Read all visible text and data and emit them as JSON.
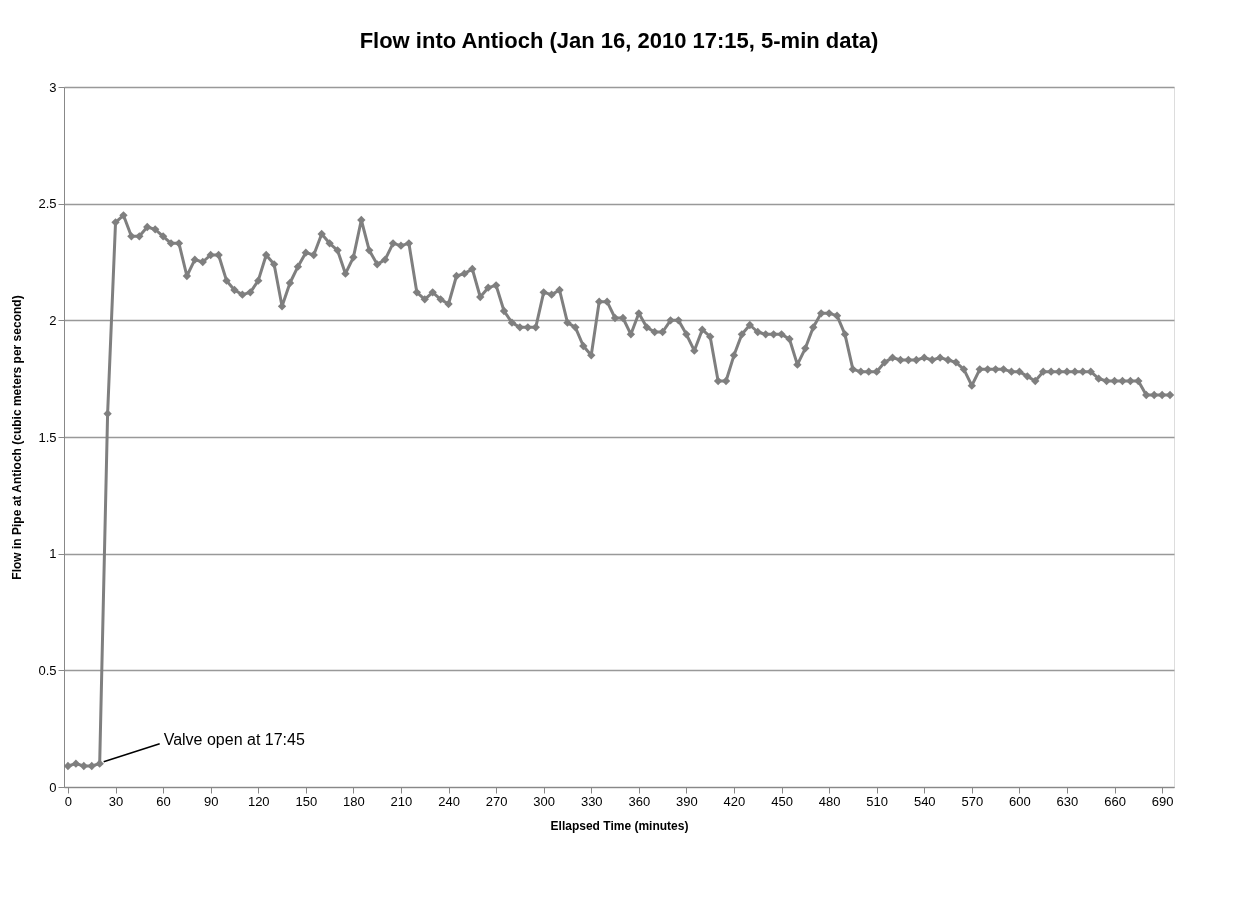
{
  "chart_data": {
    "type": "line",
    "title": "Flow into Antioch (Jan 16, 2010 17:15, 5-min data)",
    "xlabel": "Ellapsed Time (minutes)",
    "ylabel": "Flow in Pipe at Antioch (cubic meters per second)",
    "x": [
      0,
      5,
      10,
      15,
      20,
      25,
      30,
      35,
      40,
      45,
      50,
      55,
      60,
      65,
      70,
      75,
      80,
      85,
      90,
      95,
      100,
      105,
      110,
      115,
      120,
      125,
      130,
      135,
      140,
      145,
      150,
      155,
      160,
      165,
      170,
      175,
      180,
      185,
      190,
      195,
      200,
      205,
      210,
      215,
      220,
      225,
      230,
      235,
      240,
      245,
      250,
      255,
      260,
      265,
      270,
      275,
      280,
      285,
      290,
      295,
      300,
      305,
      310,
      315,
      320,
      325,
      330,
      335,
      340,
      345,
      350,
      355,
      360,
      365,
      370,
      375,
      380,
      385,
      390,
      395,
      400,
      405,
      410,
      415,
      420,
      425,
      430,
      435,
      440,
      445,
      450,
      455,
      460,
      465,
      470,
      475,
      480,
      485,
      490,
      495,
      500,
      505,
      510,
      515,
      520,
      525,
      530,
      535,
      540,
      545,
      550,
      555,
      560,
      565,
      570,
      575,
      580,
      585,
      590,
      595,
      600,
      605,
      610,
      615,
      620,
      625,
      630,
      635,
      640,
      645,
      650,
      655,
      660,
      665,
      670,
      675,
      680,
      685,
      690,
      695
    ],
    "series": [
      {
        "color": "#7f7f7f",
        "values": [
          0.09,
          0.1,
          0.09,
          0.09,
          0.1,
          1.6,
          2.42,
          2.45,
          2.36,
          2.36,
          2.4,
          2.39,
          2.36,
          2.33,
          2.33,
          2.19,
          2.26,
          2.25,
          2.28,
          2.28,
          2.17,
          2.13,
          2.11,
          2.12,
          2.17,
          2.28,
          2.24,
          2.06,
          2.16,
          2.23,
          2.29,
          2.28,
          2.37,
          2.33,
          2.3,
          2.2,
          2.27,
          2.43,
          2.3,
          2.24,
          2.26,
          2.33,
          2.32,
          2.33,
          2.12,
          2.09,
          2.12,
          2.09,
          2.07,
          2.19,
          2.2,
          2.22,
          2.1,
          2.14,
          2.15,
          2.04,
          1.99,
          1.97,
          1.97,
          1.97,
          2.12,
          2.11,
          2.13,
          1.99,
          1.97,
          1.89,
          1.85,
          2.08,
          2.08,
          2.01,
          2.01,
          1.94,
          2.03,
          1.97,
          1.95,
          1.95,
          2.0,
          2.0,
          1.94,
          1.87,
          1.96,
          1.93,
          1.74,
          1.74,
          1.85,
          1.94,
          1.98,
          1.95,
          1.94,
          1.94,
          1.94,
          1.92,
          1.81,
          1.88,
          1.97,
          2.03,
          2.03,
          2.02,
          1.94,
          1.79,
          1.78,
          1.78,
          1.78,
          1.82,
          1.84,
          1.83,
          1.83,
          1.83,
          1.84,
          1.83,
          1.84,
          1.83,
          1.82,
          1.79,
          1.72,
          1.79,
          1.79,
          1.79,
          1.79,
          1.78,
          1.78,
          1.76,
          1.74,
          1.78,
          1.78,
          1.78,
          1.78,
          1.78,
          1.78,
          1.78,
          1.75,
          1.74,
          1.74,
          1.74,
          1.74,
          1.74,
          1.68,
          1.68,
          1.68,
          1.68
        ]
      }
    ],
    "xlim": [
      -2.5,
      697.5
    ],
    "xticks": [
      0,
      30,
      60,
      90,
      120,
      150,
      180,
      210,
      240,
      270,
      300,
      330,
      360,
      390,
      420,
      450,
      480,
      510,
      540,
      570,
      600,
      630,
      660,
      690
    ],
    "ylim": [
      0,
      3
    ],
    "yticks": [
      0,
      0.5,
      1,
      1.5,
      2,
      2.5,
      3
    ],
    "annotations": [
      {
        "text": "Valve open at 17:45",
        "x": 20,
        "y": 0.1
      }
    ],
    "grid": "y",
    "marker": "diamond",
    "line_style": "solid"
  }
}
